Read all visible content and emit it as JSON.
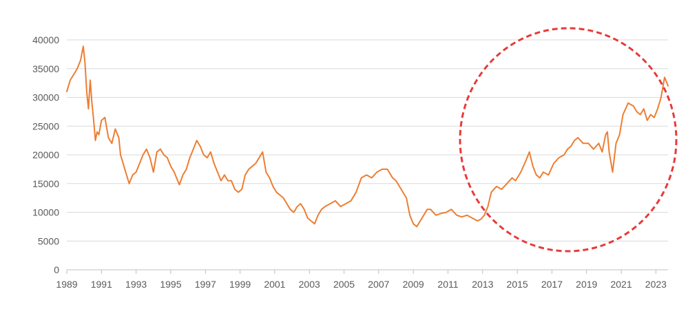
{
  "colors": {
    "series_line": "#ED7D31",
    "gridline": "#D9D9D9",
    "axis": "#BFBFBF",
    "tick_text": "#595959",
    "highlight_circle": "#E8393A"
  },
  "chart_data": {
    "type": "line",
    "title": "",
    "xlabel": "",
    "ylabel": "",
    "xlim": [
      1989,
      2023.7
    ],
    "ylim": [
      0,
      40000
    ],
    "grid": true,
    "legend": "none",
    "x_ticks": [
      "1989",
      "1991",
      "1993",
      "1995",
      "1997",
      "1999",
      "2001",
      "2003",
      "2005",
      "2007",
      "2009",
      "2011",
      "2013",
      "2015",
      "2017",
      "2019",
      "2021",
      "2023"
    ],
    "y_ticks": [
      "0",
      "5000",
      "10000",
      "15000",
      "20000",
      "25000",
      "30000",
      "35000",
      "40000"
    ],
    "series": [
      {
        "x": [
          1989.0,
          1989.2,
          1989.4,
          1989.6,
          1989.8,
          1989.95,
          1990.05,
          1990.15,
          1990.25,
          1990.35,
          1990.45,
          1990.55,
          1990.65,
          1990.75,
          1990.85,
          1991.0,
          1991.2,
          1991.4,
          1991.6,
          1991.8,
          1992.0,
          1992.1,
          1992.25,
          1992.4,
          1992.6,
          1992.8,
          1993.0,
          1993.2,
          1993.4,
          1993.6,
          1993.8,
          1994.0,
          1994.2,
          1994.4,
          1994.6,
          1994.8,
          1995.0,
          1995.2,
          1995.4,
          1995.5,
          1995.7,
          1995.9,
          1996.1,
          1996.3,
          1996.5,
          1996.7,
          1996.9,
          1997.1,
          1997.3,
          1997.5,
          1997.7,
          1997.9,
          1998.1,
          1998.3,
          1998.5,
          1998.7,
          1998.9,
          1999.1,
          1999.3,
          1999.5,
          1999.7,
          1999.9,
          2000.1,
          2000.3,
          2000.5,
          2000.7,
          2000.9,
          2001.1,
          2001.3,
          2001.5,
          2001.7,
          2001.9,
          2002.1,
          2002.3,
          2002.5,
          2002.7,
          2002.9,
          2003.1,
          2003.3,
          2003.5,
          2003.7,
          2003.9,
          2004.2,
          2004.5,
          2004.8,
          2005.1,
          2005.4,
          2005.7,
          2006.0,
          2006.3,
          2006.6,
          2006.9,
          2007.2,
          2007.5,
          2007.8,
          2008.0,
          2008.3,
          2008.6,
          2008.8,
          2009.0,
          2009.2,
          2009.4,
          2009.6,
          2009.8,
          2010.0,
          2010.3,
          2010.6,
          2010.9,
          2011.2,
          2011.5,
          2011.8,
          2012.1,
          2012.4,
          2012.7,
          2012.9,
          2013.1,
          2013.3,
          2013.5,
          2013.8,
          2014.1,
          2014.4,
          2014.7,
          2014.9,
          2015.2,
          2015.5,
          2015.7,
          2015.9,
          2016.1,
          2016.3,
          2016.5,
          2016.8,
          2017.1,
          2017.4,
          2017.7,
          2017.9,
          2018.1,
          2018.3,
          2018.5,
          2018.8,
          2019.1,
          2019.4,
          2019.7,
          2019.9,
          2020.1,
          2020.2,
          2020.3,
          2020.5,
          2020.7,
          2020.9,
          2021.1,
          2021.4,
          2021.7,
          2021.9,
          2022.1,
          2022.3,
          2022.5,
          2022.7,
          2022.9,
          2023.1,
          2023.3,
          2023.5,
          2023.7
        ],
        "values": [
          31000,
          33000,
          34000,
          35000,
          36500,
          38900,
          36000,
          31000,
          28000,
          33000,
          29000,
          26000,
          22500,
          24000,
          23500,
          26000,
          26500,
          23000,
          22000,
          24500,
          23000,
          20000,
          18500,
          17000,
          15000,
          16500,
          17000,
          18500,
          20000,
          21000,
          19500,
          17000,
          20500,
          21000,
          20000,
          19500,
          18000,
          17000,
          15500,
          14800,
          16500,
          17500,
          19500,
          21000,
          22500,
          21500,
          20000,
          19500,
          20500,
          18500,
          17000,
          15500,
          16500,
          15500,
          15500,
          14000,
          13500,
          14000,
          16500,
          17500,
          18000,
          18500,
          19500,
          20500,
          17000,
          16000,
          14500,
          13500,
          13000,
          12500,
          11500,
          10500,
          10000,
          11000,
          11500,
          10500,
          9000,
          8500,
          8000,
          9500,
          10500,
          11000,
          11500,
          12000,
          11000,
          11500,
          12000,
          13500,
          16000,
          16500,
          16000,
          17000,
          17500,
          17500,
          16000,
          15500,
          14000,
          12500,
          9500,
          8000,
          7500,
          8500,
          9500,
          10500,
          10500,
          9500,
          9800,
          10000,
          10500,
          9500,
          9200,
          9500,
          9000,
          8500,
          8800,
          9500,
          11000,
          13500,
          14500,
          14000,
          15000,
          16000,
          15500,
          17000,
          19000,
          20500,
          18000,
          16500,
          16000,
          17000,
          16500,
          18500,
          19500,
          20000,
          21000,
          21500,
          22500,
          23000,
          22000,
          22000,
          21000,
          22000,
          20500,
          23500,
          24000,
          20500,
          17000,
          22000,
          23500,
          27000,
          29000,
          28500,
          27500,
          27000,
          28000,
          26000,
          27000,
          26500,
          28000,
          30000,
          33500,
          32000
        ]
      }
    ]
  }
}
